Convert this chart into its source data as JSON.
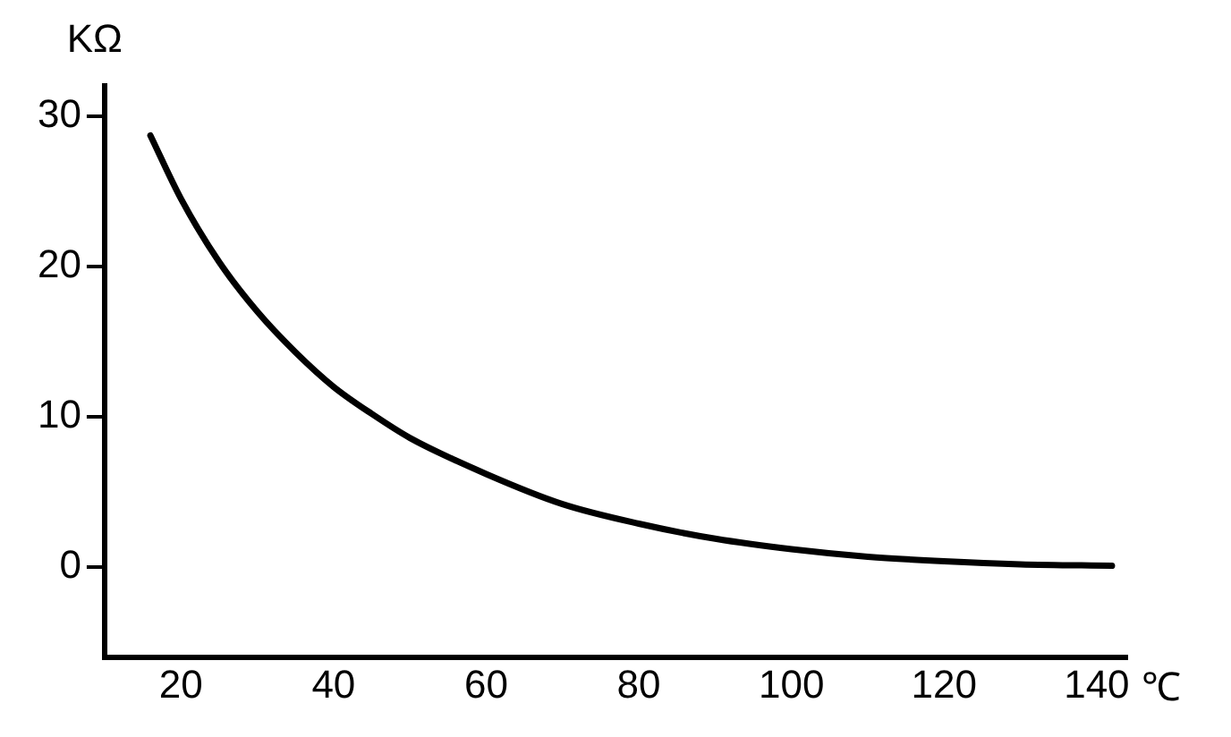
{
  "chart_data": {
    "type": "line",
    "xlabel": "℃",
    "ylabel": "KΩ",
    "x": [
      16,
      20,
      25,
      30,
      35,
      40,
      45,
      50,
      60,
      70,
      80,
      90,
      100,
      110,
      120,
      130,
      142
    ],
    "series": [
      {
        "color": "#000000",
        "values": [
          28.7,
          24.5,
          20.3,
          17,
          14.3,
          12,
          10.2,
          8.6,
          6.2,
          4.2,
          2.9,
          1.9,
          1.2,
          0.7,
          0.4,
          0.2,
          0.1
        ]
      }
    ],
    "xlim": [
      10,
      144
    ],
    "xticks": [
      20,
      40,
      60,
      80,
      100,
      120,
      140
    ],
    "ylim": [
      -6,
      32
    ],
    "yticks": [
      0,
      10,
      20,
      30
    ],
    "grid": false,
    "legend": false,
    "marker": "none",
    "line_style": "solid"
  }
}
